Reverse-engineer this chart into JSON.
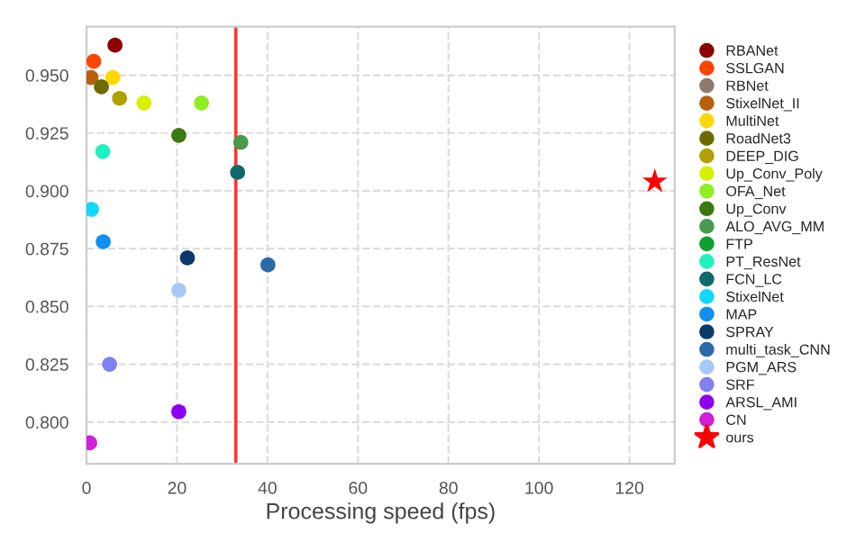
{
  "chart_data": {
    "type": "scatter",
    "xlabel": "Processing speed (fps)",
    "xlim": [
      0,
      130
    ],
    "xticks": [
      0,
      20,
      40,
      60,
      80,
      100,
      120
    ],
    "ylim": [
      0.782,
      0.971
    ],
    "yticks": [
      {
        "value": 0.8,
        "label": "0.800"
      },
      {
        "value": 0.825,
        "label": "0.825"
      },
      {
        "value": 0.85,
        "label": "0.850"
      },
      {
        "value": 0.875,
        "label": "0.875"
      },
      {
        "value": 0.9,
        "label": "0.900"
      },
      {
        "value": 0.925,
        "label": "0.925"
      },
      {
        "value": 0.95,
        "label": "0.950"
      }
    ],
    "grid": true,
    "legend": "right",
    "marker": "circle",
    "ref_lines": [
      {
        "axis": "x",
        "value": 33,
        "color": "#ff3333"
      }
    ],
    "series": [
      {
        "name": "RBANet",
        "color": "#8b0000",
        "x": [
          6.3
        ],
        "values": [
          0.963
        ]
      },
      {
        "name": "SSLGAN",
        "color": "#ff4500",
        "x": [
          1.6
        ],
        "values": [
          0.956
        ]
      },
      {
        "name": "RBNet",
        "color": "#8c7b6b",
        "x": [
          null
        ],
        "values": [
          null
        ]
      },
      {
        "name": "StixelNet_II",
        "color": "#b8600b",
        "x": [
          1.0
        ],
        "values": [
          0.949
        ]
      },
      {
        "name": "MultiNet",
        "color": "#ffd700",
        "x": [
          5.8
        ],
        "values": [
          0.949
        ]
      },
      {
        "name": "RoadNet3",
        "color": "#6b6b00",
        "x": [
          3.3
        ],
        "values": [
          0.945
        ]
      },
      {
        "name": "DEEP_DIG",
        "color": "#b0a000",
        "x": [
          7.3
        ],
        "values": [
          0.94
        ]
      },
      {
        "name": "Up_Conv_Poly",
        "color": "#d8f000",
        "x": [
          12.7
        ],
        "values": [
          0.938
        ]
      },
      {
        "name": "OFA_Net",
        "color": "#90ee20",
        "x": [
          25.4
        ],
        "values": [
          0.938
        ]
      },
      {
        "name": "Up_Conv",
        "color": "#3a7a10",
        "x": [
          20.4
        ],
        "values": [
          0.924
        ]
      },
      {
        "name": "ALO_AVG_MM",
        "color": "#4a9a50",
        "x": [
          34.1
        ],
        "values": [
          0.921
        ]
      },
      {
        "name": "FTP",
        "color": "#10a030",
        "x": [
          null
        ],
        "values": [
          null
        ]
      },
      {
        "name": "PT_ResNet",
        "color": "#20f0c0",
        "x": [
          3.6
        ],
        "values": [
          0.917
        ]
      },
      {
        "name": "FCN_LC",
        "color": "#106a6a",
        "x": [
          33.4
        ],
        "values": [
          0.908
        ]
      },
      {
        "name": "StixelNet",
        "color": "#10d8ff",
        "x": [
          1.1
        ],
        "values": [
          0.892
        ]
      },
      {
        "name": "MAP",
        "color": "#1090f0",
        "x": [
          3.7
        ],
        "values": [
          0.878
        ]
      },
      {
        "name": "SPRAY",
        "color": "#0a3a6a",
        "x": [
          22.3
        ],
        "values": [
          0.871
        ]
      },
      {
        "name": "multi_task_CNN",
        "color": "#2a6aaa",
        "x": [
          40.1
        ],
        "values": [
          0.868
        ]
      },
      {
        "name": "PGM_ARS",
        "color": "#a8c8f8",
        "x": [
          20.4
        ],
        "values": [
          0.857
        ]
      },
      {
        "name": "SRF",
        "color": "#8080f0",
        "x": [
          5.1
        ],
        "values": [
          0.825
        ]
      },
      {
        "name": "ARSL_AMI",
        "color": "#9000f0",
        "x": [
          20.4
        ],
        "values": [
          0.8045
        ]
      },
      {
        "name": "CN",
        "color": "#d020d8",
        "x": [
          0.7
        ],
        "values": [
          0.791
        ]
      },
      {
        "name": "ours",
        "color": "#ff0000",
        "marker": "star",
        "x": [
          125.6
        ],
        "values": [
          0.904
        ]
      }
    ]
  }
}
